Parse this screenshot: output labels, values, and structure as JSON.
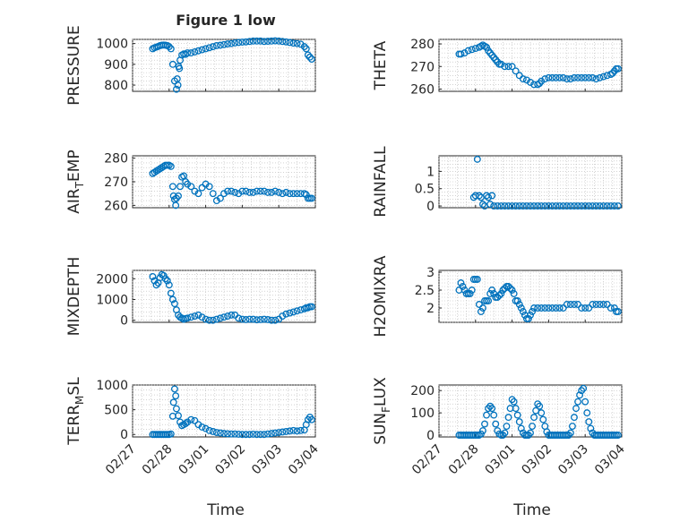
{
  "figure": {
    "title": "Figure 1 low",
    "xlabel": "Time"
  },
  "colors": {
    "marker": "#0072BD",
    "axis": "#262626",
    "grid": "#b8b8b8"
  },
  "chart_data": [
    {
      "type": "scatter",
      "ylabel": "PRESSURE",
      "subscript": "",
      "suffix": "",
      "xlim": [
        27,
        32
      ],
      "ylim": [
        770,
        1020
      ],
      "yticks": [
        800,
        900,
        1000
      ],
      "yticklabels": [
        "800",
        "900",
        "1000"
      ],
      "xticks": [],
      "xticklabels": [],
      "x": [
        27.55,
        27.6,
        27.65,
        27.7,
        27.75,
        27.8,
        27.85,
        27.9,
        27.95,
        28.0,
        28.05,
        28.1,
        28.15,
        28.2,
        28.22,
        28.24,
        28.26,
        28.28,
        28.3,
        28.35,
        28.4,
        28.45,
        28.5,
        28.6,
        28.7,
        28.8,
        28.9,
        29.0,
        29.1,
        29.2,
        29.3,
        29.4,
        29.5,
        29.6,
        29.7,
        29.8,
        29.9,
        30.0,
        30.1,
        30.2,
        30.3,
        30.4,
        30.5,
        30.6,
        30.7,
        30.8,
        30.9,
        31.0,
        31.1,
        31.2,
        31.3,
        31.4,
        31.5,
        31.6,
        31.7,
        31.75,
        31.8,
        31.85,
        31.9
      ],
      "y": [
        975,
        980,
        983,
        986,
        990,
        992,
        993,
        992,
        990,
        985,
        975,
        900,
        820,
        780,
        830,
        800,
        890,
        880,
        920,
        945,
        950,
        948,
        955,
        955,
        960,
        965,
        970,
        975,
        980,
        985,
        990,
        992,
        995,
        998,
        1000,
        1003,
        1005,
        1007,
        1008,
        1010,
        1012,
        1012,
        1012,
        1010,
        1011,
        1012,
        1013,
        1012,
        1010,
        1008,
        1005,
        1002,
        1000,
        997,
        985,
        975,
        945,
        935,
        925
      ]
    },
    {
      "type": "scatter",
      "ylabel": "THETA",
      "subscript": "",
      "suffix": "",
      "xlim": [
        27,
        32
      ],
      "ylim": [
        259,
        282
      ],
      "yticks": [
        260,
        270,
        280
      ],
      "yticklabels": [
        "260",
        "270",
        "280"
      ],
      "xticks": [],
      "xticklabels": [],
      "x": [
        27.55,
        27.6,
        27.7,
        27.8,
        27.9,
        28.0,
        28.1,
        28.15,
        28.2,
        28.25,
        28.3,
        28.35,
        28.4,
        28.45,
        28.5,
        28.55,
        28.6,
        28.65,
        28.7,
        28.8,
        28.9,
        29.0,
        29.1,
        29.2,
        29.3,
        29.4,
        29.5,
        29.6,
        29.7,
        29.75,
        29.8,
        29.9,
        30.0,
        30.1,
        30.2,
        30.3,
        30.4,
        30.5,
        30.6,
        30.7,
        30.8,
        30.9,
        31.0,
        31.1,
        31.2,
        31.3,
        31.4,
        31.5,
        31.6,
        31.7,
        31.75,
        31.8,
        31.85,
        31.9
      ],
      "y": [
        275.5,
        275.5,
        276,
        277,
        277.5,
        278,
        278.5,
        279,
        279.5,
        279,
        278.5,
        277,
        276,
        275,
        274,
        273,
        272,
        271,
        271,
        270,
        270,
        270,
        268,
        266,
        264.5,
        264,
        263,
        262,
        262,
        262.5,
        263.5,
        264.5,
        265,
        265,
        265,
        265,
        265,
        264.5,
        264.5,
        265,
        265,
        265,
        265,
        265,
        265,
        264.5,
        265,
        265.5,
        266,
        266.5,
        267,
        268,
        269,
        269
      ]
    },
    {
      "type": "scatter",
      "ylabel": "AIR",
      "subscript": "T",
      "suffix": "EMP",
      "xlim": [
        27,
        32
      ],
      "ylim": [
        259,
        281
      ],
      "yticks": [
        260,
        270,
        280
      ],
      "yticklabels": [
        "260",
        "270",
        "280"
      ],
      "xticks": [],
      "xticklabels": [],
      "x": [
        27.55,
        27.6,
        27.65,
        27.7,
        27.75,
        27.8,
        27.85,
        27.9,
        27.95,
        28.0,
        28.05,
        28.1,
        28.12,
        28.15,
        28.18,
        28.2,
        28.25,
        28.3,
        28.35,
        28.4,
        28.45,
        28.5,
        28.6,
        28.7,
        28.8,
        28.9,
        29.0,
        29.1,
        29.2,
        29.3,
        29.4,
        29.5,
        29.6,
        29.7,
        29.8,
        29.9,
        30.0,
        30.1,
        30.2,
        30.3,
        30.4,
        30.5,
        30.6,
        30.7,
        30.8,
        30.9,
        31.0,
        31.1,
        31.2,
        31.3,
        31.4,
        31.5,
        31.6,
        31.7,
        31.75,
        31.8,
        31.85,
        31.9
      ],
      "y": [
        273.5,
        274,
        274.5,
        275,
        275.5,
        276,
        276.5,
        277,
        277,
        277,
        276.5,
        268,
        264,
        262.5,
        260,
        263,
        264,
        268,
        272,
        272.5,
        270,
        269,
        268,
        266,
        265,
        267.5,
        269,
        268,
        265,
        262,
        263,
        265,
        266,
        266,
        265.5,
        265,
        266,
        266,
        265.5,
        265.5,
        266,
        266,
        266,
        265.5,
        265.5,
        266,
        265.5,
        265,
        265.5,
        265,
        265,
        265,
        265,
        265,
        264.5,
        263,
        263,
        263
      ]
    },
    {
      "type": "scatter",
      "ylabel": "RAINFALL",
      "subscript": "",
      "suffix": "",
      "xlim": [
        27,
        32
      ],
      "ylim": [
        -0.05,
        1.45
      ],
      "yticks": [
        0,
        0.5,
        1
      ],
      "yticklabels": [
        "0",
        "0.5",
        "1"
      ],
      "xticks": [],
      "xticklabels": [],
      "x": [
        27.95,
        28.0,
        28.05,
        28.1,
        28.15,
        28.2,
        28.25,
        28.3,
        28.35,
        28.4,
        28.45,
        28.5,
        28.6,
        28.7,
        28.8,
        28.9,
        29.0,
        29.1,
        29.2,
        29.3,
        29.4,
        29.5,
        29.6,
        29.7,
        29.8,
        29.9,
        30.0,
        30.1,
        30.2,
        30.3,
        30.4,
        30.5,
        30.6,
        30.7,
        30.8,
        30.9,
        31.0,
        31.1,
        31.2,
        31.3,
        31.4,
        31.5,
        31.6,
        31.7,
        31.8,
        31.9
      ],
      "y": [
        0.25,
        0.3,
        1.35,
        0.3,
        0.25,
        0.05,
        0,
        0.3,
        0.25,
        0.05,
        0.3,
        0,
        0,
        0,
        0,
        0,
        0,
        0,
        0,
        0,
        0,
        0,
        0,
        0,
        0,
        0,
        0,
        0,
        0,
        0,
        0,
        0,
        0,
        0,
        0,
        0,
        0,
        0,
        0,
        0,
        0,
        0,
        0,
        0,
        0,
        0
      ]
    },
    {
      "type": "scatter",
      "ylabel": "MIXDEPTH",
      "subscript": "",
      "suffix": "",
      "xlim": [
        27,
        32
      ],
      "ylim": [
        -100,
        2400
      ],
      "yticks": [
        0,
        1000,
        2000
      ],
      "yticklabels": [
        "0",
        "1000",
        "2000"
      ],
      "xticks": [],
      "xticklabels": [],
      "x": [
        27.55,
        27.6,
        27.65,
        27.7,
        27.75,
        27.8,
        27.85,
        27.9,
        27.95,
        28.0,
        28.05,
        28.1,
        28.15,
        28.2,
        28.25,
        28.3,
        28.35,
        28.4,
        28.45,
        28.5,
        28.6,
        28.7,
        28.8,
        28.9,
        29.0,
        29.1,
        29.2,
        29.3,
        29.4,
        29.5,
        29.6,
        29.7,
        29.8,
        29.9,
        30.0,
        30.1,
        30.2,
        30.3,
        30.4,
        30.5,
        30.6,
        30.7,
        30.8,
        30.9,
        31.0,
        31.1,
        31.2,
        31.3,
        31.4,
        31.5,
        31.6,
        31.7,
        31.75,
        31.8,
        31.85,
        31.9
      ],
      "y": [
        2100,
        1900,
        1700,
        1800,
        2050,
        2200,
        2150,
        2000,
        1900,
        1700,
        1300,
        1000,
        800,
        500,
        250,
        150,
        100,
        50,
        80,
        100,
        150,
        200,
        250,
        150,
        50,
        0,
        0,
        50,
        100,
        150,
        200,
        250,
        250,
        100,
        50,
        30,
        50,
        50,
        20,
        30,
        50,
        30,
        0,
        0,
        50,
        200,
        300,
        350,
        400,
        450,
        500,
        550,
        600,
        600,
        650,
        650
      ]
    },
    {
      "type": "scatter",
      "ylabel": "H2OMIXRA",
      "subscript": "",
      "suffix": "",
      "xlim": [
        27,
        32
      ],
      "ylim": [
        1.6,
        3.05
      ],
      "yticks": [
        2,
        2.5,
        3
      ],
      "yticklabels": [
        "2",
        "2.5",
        "3"
      ],
      "xticks": [],
      "xticklabels": [],
      "x": [
        27.55,
        27.6,
        27.65,
        27.7,
        27.75,
        27.8,
        27.85,
        27.9,
        27.95,
        28.0,
        28.05,
        28.1,
        28.15,
        28.2,
        28.25,
        28.3,
        28.35,
        28.4,
        28.45,
        28.5,
        28.55,
        28.6,
        28.65,
        28.7,
        28.75,
        28.8,
        28.85,
        28.9,
        28.95,
        29.0,
        29.05,
        29.1,
        29.15,
        29.2,
        29.25,
        29.3,
        29.35,
        29.4,
        29.45,
        29.5,
        29.55,
        29.6,
        29.7,
        29.8,
        29.9,
        30.0,
        30.1,
        30.2,
        30.3,
        30.4,
        30.5,
        30.6,
        30.7,
        30.8,
        30.9,
        31.0,
        31.1,
        31.2,
        31.3,
        31.4,
        31.5,
        31.6,
        31.7,
        31.8,
        31.85,
        31.9
      ],
      "y": [
        2.5,
        2.7,
        2.6,
        2.5,
        2.4,
        2.4,
        2.4,
        2.5,
        2.8,
        2.8,
        2.8,
        2.1,
        1.9,
        2.0,
        2.2,
        2.2,
        2.2,
        2.4,
        2.5,
        2.4,
        2.3,
        2.3,
        2.35,
        2.4,
        2.5,
        2.55,
        2.6,
        2.6,
        2.55,
        2.5,
        2.4,
        2.2,
        2.2,
        2.1,
        2.0,
        1.9,
        1.8,
        1.7,
        1.7,
        1.8,
        1.9,
        2.0,
        2.0,
        2.0,
        2.0,
        2.0,
        2.0,
        2.0,
        2.0,
        2.0,
        2.1,
        2.1,
        2.1,
        2.1,
        2.0,
        2.0,
        2.0,
        2.1,
        2.1,
        2.1,
        2.1,
        2.1,
        2.0,
        2.0,
        1.9,
        1.9
      ]
    },
    {
      "type": "scatter",
      "ylabel": "TERR",
      "subscript": "M",
      "suffix": "SL",
      "xlim": [
        27,
        32
      ],
      "ylim": [
        -50,
        1000
      ],
      "yticks": [
        0,
        500,
        1000
      ],
      "yticklabels": [
        "0",
        "500",
        "1000"
      ],
      "xticks": [
        27,
        28,
        29,
        30,
        31,
        32
      ],
      "xticklabels": [
        "02/27",
        "02/28",
        "03/01",
        "03/02",
        "03/03",
        "03/04"
      ],
      "x": [
        27.55,
        27.6,
        27.65,
        27.7,
        27.75,
        27.8,
        27.85,
        27.9,
        27.95,
        28.0,
        28.05,
        28.1,
        28.12,
        28.15,
        28.18,
        28.2,
        28.25,
        28.3,
        28.35,
        28.4,
        28.45,
        28.5,
        28.6,
        28.7,
        28.8,
        28.9,
        29.0,
        29.1,
        29.2,
        29.3,
        29.4,
        29.5,
        29.6,
        29.7,
        29.8,
        29.9,
        30.0,
        30.1,
        30.2,
        30.3,
        30.4,
        30.5,
        30.6,
        30.7,
        30.8,
        30.9,
        31.0,
        31.1,
        31.2,
        31.3,
        31.4,
        31.5,
        31.6,
        31.7,
        31.75,
        31.8,
        31.85,
        31.9
      ],
      "y": [
        0,
        0,
        0,
        0,
        0,
        0,
        0,
        0,
        0,
        0,
        10,
        370,
        650,
        920,
        780,
        520,
        380,
        250,
        180,
        200,
        220,
        250,
        300,
        280,
        200,
        150,
        120,
        80,
        60,
        40,
        30,
        20,
        15,
        10,
        10,
        5,
        0,
        0,
        0,
        5,
        0,
        0,
        0,
        10,
        20,
        30,
        40,
        50,
        60,
        70,
        80,
        70,
        80,
        90,
        200,
        300,
        350,
        300
      ]
    },
    {
      "type": "scatter",
      "ylabel": "SUN",
      "subscript": "F",
      "suffix": "LUX",
      "xlim": [
        27,
        32
      ],
      "ylim": [
        -8,
        225
      ],
      "yticks": [
        0,
        100,
        200
      ],
      "yticklabels": [
        "0",
        "100",
        "200"
      ],
      "xticks": [
        27,
        28,
        29,
        30,
        31,
        32
      ],
      "xticklabels": [
        "02/27",
        "02/28",
        "03/01",
        "03/02",
        "03/03",
        "03/04"
      ],
      "x": [
        27.55,
        27.6,
        27.65,
        27.7,
        27.75,
        27.8,
        27.85,
        27.9,
        27.95,
        28.0,
        28.05,
        28.1,
        28.15,
        28.2,
        28.25,
        28.3,
        28.35,
        28.4,
        28.45,
        28.5,
        28.55,
        28.6,
        28.65,
        28.7,
        28.75,
        28.8,
        28.85,
        28.9,
        28.95,
        29.0,
        29.05,
        29.1,
        29.15,
        29.2,
        29.25,
        29.3,
        29.35,
        29.4,
        29.45,
        29.5,
        29.55,
        29.6,
        29.65,
        29.7,
        29.75,
        29.8,
        29.85,
        29.9,
        29.95,
        30.0,
        30.05,
        30.1,
        30.15,
        30.2,
        30.25,
        30.3,
        30.35,
        30.4,
        30.45,
        30.5,
        30.55,
        30.6,
        30.65,
        30.7,
        30.75,
        30.8,
        30.85,
        30.9,
        30.95,
        31.0,
        31.05,
        31.1,
        31.15,
        31.2,
        31.25,
        31.3,
        31.35,
        31.4,
        31.45,
        31.5,
        31.55,
        31.6,
        31.65,
        31.7,
        31.75,
        31.8,
        31.85,
        31.9
      ],
      "y": [
        0,
        0,
        0,
        0,
        0,
        0,
        0,
        0,
        0,
        0,
        0,
        0,
        5,
        20,
        50,
        90,
        120,
        130,
        120,
        90,
        50,
        20,
        5,
        0,
        0,
        10,
        40,
        80,
        120,
        160,
        150,
        120,
        90,
        60,
        30,
        10,
        0,
        0,
        0,
        10,
        40,
        80,
        110,
        140,
        130,
        100,
        70,
        40,
        15,
        0,
        0,
        0,
        0,
        0,
        0,
        0,
        0,
        0,
        0,
        0,
        0,
        10,
        40,
        80,
        120,
        150,
        180,
        200,
        210,
        150,
        100,
        60,
        30,
        10,
        0,
        0,
        0,
        0,
        0,
        0,
        0,
        0,
        0,
        0,
        0,
        0,
        0,
        0
      ]
    }
  ]
}
